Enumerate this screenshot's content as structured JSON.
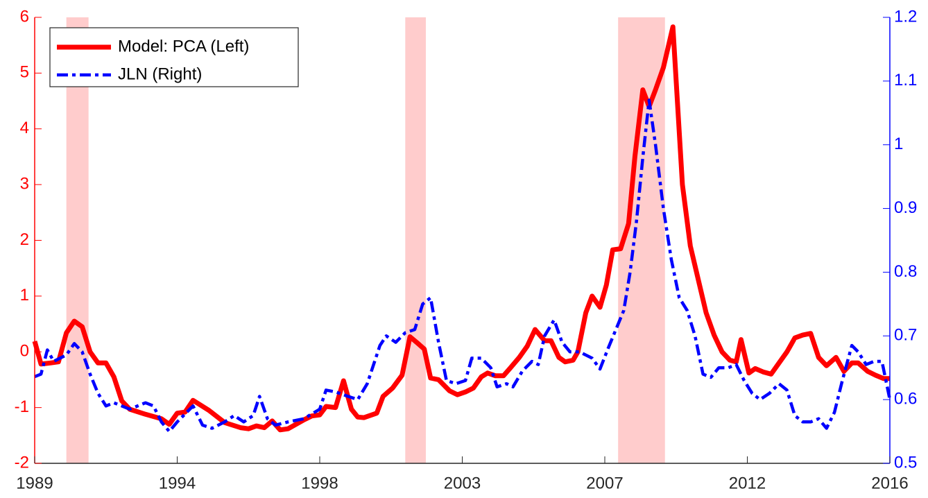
{
  "chart_data": {
    "type": "line",
    "xlim": [
      1989,
      2016
    ],
    "xticks": [
      {
        "value": 1989,
        "label": "1989"
      },
      {
        "value": 1993.5,
        "label": "1994"
      },
      {
        "value": 1998,
        "label": "1998"
      },
      {
        "value": 2002.5,
        "label": "2003"
      },
      {
        "value": 2007,
        "label": "2007"
      },
      {
        "value": 2011.5,
        "label": "2012"
      },
      {
        "value": 2016,
        "label": "2016"
      }
    ],
    "ylim": [
      -2,
      6
    ],
    "yticks": [
      -2,
      -1,
      0,
      1,
      2,
      3,
      4,
      5,
      6
    ],
    "ycolor": "#ff0000",
    "y2lim": [
      0.5,
      1.2
    ],
    "y2ticks": [
      0.5,
      0.6,
      0.7,
      0.8,
      0.9,
      1,
      1.1,
      1.2
    ],
    "y2color": "#0000ff",
    "shaded_regions": [
      [
        1990.0,
        1990.7
      ],
      [
        2000.7,
        2001.35
      ],
      [
        2007.42,
        2008.9
      ]
    ],
    "shade_color": "#ffcccc",
    "legend": "upper left",
    "series": [
      {
        "name": "Model: PCA (Left)",
        "color": "#ff0000",
        "x": [
          1989.0,
          1989.2,
          1989.5,
          1989.75,
          1990.0,
          1990.25,
          1990.5,
          1990.75,
          1991.0,
          1991.25,
          1991.5,
          1991.75,
          1992.0,
          1992.5,
          1993.0,
          1993.25,
          1993.5,
          1993.75,
          1994.0,
          1994.5,
          1995.0,
          1995.5,
          1995.75,
          1996.0,
          1996.25,
          1996.5,
          1996.75,
          1997.0,
          1997.5,
          1997.75,
          1998.0,
          1998.2,
          1998.5,
          1998.75,
          1999.0,
          1999.2,
          1999.4,
          1999.8,
          2000.0,
          2000.3,
          2000.6,
          2000.85,
          2001.1,
          2001.3,
          2001.5,
          2001.75,
          2002.1,
          2002.35,
          2002.6,
          2002.85,
          2003.1,
          2003.3,
          2003.55,
          2003.8,
          2004.0,
          2004.3,
          2004.55,
          2004.8,
          2005.1,
          2005.3,
          2005.55,
          2005.75,
          2006.0,
          2006.15,
          2006.4,
          2006.6,
          2006.85,
          2007.05,
          2007.25,
          2007.5,
          2007.75,
          2007.95,
          2008.2,
          2008.4,
          2008.6,
          2008.85,
          2009.15,
          2009.45,
          2009.7,
          2009.95,
          2010.2,
          2010.45,
          2010.7,
          2010.95,
          2011.15,
          2011.3,
          2011.55,
          2011.75,
          2012.0,
          2012.25,
          2012.5,
          2012.75,
          2013.0,
          2013.25,
          2013.5,
          2013.75,
          2014.0,
          2014.3,
          2014.55,
          2014.8,
          2015.0,
          2015.3,
          2015.55,
          2015.8,
          2016.0
        ],
        "values": [
          0.19,
          -0.22,
          -0.2,
          -0.18,
          0.34,
          0.55,
          0.45,
          0.0,
          -0.2,
          -0.2,
          -0.45,
          -0.88,
          -1.03,
          -1.12,
          -1.2,
          -1.3,
          -1.1,
          -1.08,
          -0.87,
          -1.05,
          -1.27,
          -1.36,
          -1.38,
          -1.33,
          -1.36,
          -1.24,
          -1.4,
          -1.38,
          -1.22,
          -1.15,
          -1.13,
          -0.98,
          -1.0,
          -0.52,
          -1.03,
          -1.17,
          -1.18,
          -1.1,
          -0.8,
          -0.65,
          -0.42,
          0.27,
          0.15,
          0.05,
          -0.47,
          -0.5,
          -0.7,
          -0.77,
          -0.72,
          -0.65,
          -0.45,
          -0.38,
          -0.43,
          -0.43,
          -0.3,
          -0.1,
          0.1,
          0.4,
          0.2,
          0.2,
          -0.1,
          -0.18,
          -0.15,
          0.0,
          0.7,
          1.0,
          0.8,
          1.2,
          1.83,
          1.85,
          2.3,
          3.5,
          4.7,
          4.4,
          4.7,
          5.1,
          5.83,
          3.0,
          1.9,
          1.3,
          0.7,
          0.3,
          0.0,
          -0.15,
          -0.18,
          0.22,
          -0.38,
          -0.3,
          -0.36,
          -0.4,
          -0.2,
          0.0,
          0.25,
          0.3,
          0.33,
          -0.1,
          -0.25,
          -0.1,
          -0.35,
          -0.2,
          -0.2,
          -0.35,
          -0.42,
          -0.48,
          -0.48
        ]
      },
      {
        "name": "JLN (Right)",
        "color": "#0000ff",
        "axis": "y2",
        "x": [
          1989.0,
          1989.2,
          1989.4,
          1989.6,
          1990.0,
          1990.25,
          1990.5,
          1990.75,
          1991.0,
          1991.25,
          1991.5,
          1992.0,
          1992.5,
          1992.75,
          1993.0,
          1993.25,
          1993.5,
          1994.0,
          1994.3,
          1994.6,
          1995.0,
          1995.3,
          1995.6,
          1995.9,
          1996.1,
          1996.35,
          1996.6,
          1997.0,
          1997.5,
          1998.0,
          1998.2,
          1998.5,
          1998.9,
          1999.2,
          1999.5,
          1999.9,
          2000.1,
          2000.4,
          2000.7,
          2001.0,
          2001.25,
          2001.5,
          2001.75,
          2002.0,
          2002.3,
          2002.6,
          2002.8,
          2003.1,
          2003.4,
          2003.6,
          2003.9,
          2004.1,
          2004.4,
          2004.7,
          2004.9,
          2005.1,
          2005.4,
          2005.65,
          2005.9,
          2006.2,
          2006.6,
          2006.85,
          2007.1,
          2007.35,
          2007.6,
          2007.8,
          2008.0,
          2008.2,
          2008.4,
          2008.6,
          2008.85,
          2009.1,
          2009.35,
          2009.6,
          2009.85,
          2010.1,
          2010.35,
          2010.6,
          2010.9,
          2011.15,
          2011.4,
          2011.65,
          2011.9,
          2012.2,
          2012.5,
          2012.75,
          2013.0,
          2013.25,
          2013.5,
          2013.75,
          2014.0,
          2014.25,
          2014.5,
          2014.8,
          2015.0,
          2015.25,
          2015.5,
          2015.75,
          2016.0
        ],
        "values": [
          0.636,
          0.64,
          0.678,
          0.66,
          0.67,
          0.688,
          0.675,
          0.64,
          0.61,
          0.59,
          0.595,
          0.585,
          0.595,
          0.59,
          0.565,
          0.55,
          0.565,
          0.59,
          0.56,
          0.555,
          0.565,
          0.575,
          0.565,
          0.575,
          0.605,
          0.57,
          0.56,
          0.565,
          0.57,
          0.585,
          0.615,
          0.612,
          0.605,
          0.6,
          0.625,
          0.685,
          0.7,
          0.69,
          0.705,
          0.71,
          0.75,
          0.76,
          0.69,
          0.63,
          0.625,
          0.63,
          0.665,
          0.665,
          0.65,
          0.62,
          0.625,
          0.62,
          0.645,
          0.66,
          0.655,
          0.7,
          0.725,
          0.69,
          0.675,
          0.675,
          0.665,
          0.648,
          0.68,
          0.71,
          0.74,
          0.8,
          0.88,
          0.98,
          1.07,
          1.0,
          0.9,
          0.82,
          0.76,
          0.74,
          0.7,
          0.64,
          0.635,
          0.65,
          0.65,
          0.655,
          0.63,
          0.61,
          0.6,
          0.61,
          0.625,
          0.615,
          0.575,
          0.565,
          0.565,
          0.57,
          0.555,
          0.58,
          0.63,
          0.685,
          0.675,
          0.655,
          0.66,
          0.66,
          0.6
        ]
      }
    ]
  }
}
